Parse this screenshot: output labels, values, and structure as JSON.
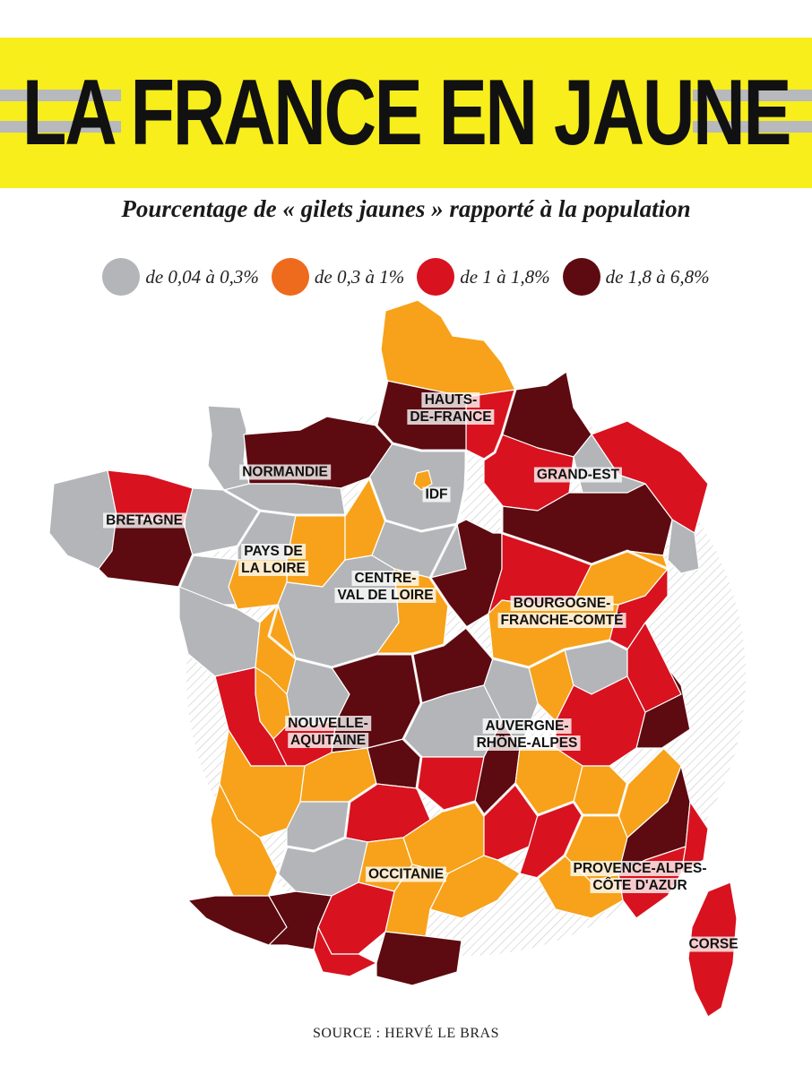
{
  "header": {
    "title": "LA FRANCE EN JAUNE",
    "subtitle": "Pourcentage de « gilets jaunes » rapporté à la population"
  },
  "legend": [
    {
      "label": "de 0,04 à 0,3%",
      "color": "#b3b5b8"
    },
    {
      "label": "de 0,3 à 1%",
      "color": "#ee6a1c"
    },
    {
      "label": "de 1 à 1,8%",
      "color": "#d8121f"
    },
    {
      "label": "de 1,8 à 6,8%",
      "color": "#5d0a10"
    }
  ],
  "map": {
    "fill_colors": {
      "gray": "#b3b5b8",
      "orange": "#f7a21a",
      "red": "#d8121f",
      "dark": "#5d0a10"
    },
    "regions": [
      {
        "id": "hauts-de-france",
        "label": "HAUTS-\nDE-FRANCE"
      },
      {
        "id": "normandie",
        "label": "NORMANDIE"
      },
      {
        "id": "idf",
        "label": "IDF"
      },
      {
        "id": "grand-est",
        "label": "GRAND-EST"
      },
      {
        "id": "bretagne",
        "label": "BRETAGNE"
      },
      {
        "id": "pays-de-la-loire",
        "label": "PAYS DE\nLA LOIRE"
      },
      {
        "id": "centre-val-de-loire",
        "label": "CENTRE-\nVAL DE LOIRE"
      },
      {
        "id": "bourgogne-franche-comte",
        "label": "BOURGOGNE-\nFRANCHE-COMTÉ"
      },
      {
        "id": "nouvelle-aquitaine",
        "label": "NOUVELLE-\nAQUITAINE"
      },
      {
        "id": "auvergne-rhone-alpes",
        "label": "AUVERGNE-\nRHÔNE-ALPES"
      },
      {
        "id": "occitanie",
        "label": "OCCITANIE"
      },
      {
        "id": "provence-alpes-cote-d-azur",
        "label": "PROVENCE-ALPES-\nCÔTE D'AZUR"
      },
      {
        "id": "corse",
        "label": "CORSE"
      }
    ]
  },
  "footer": {
    "source": "SOURCE : HERVÉ LE BRAS"
  }
}
